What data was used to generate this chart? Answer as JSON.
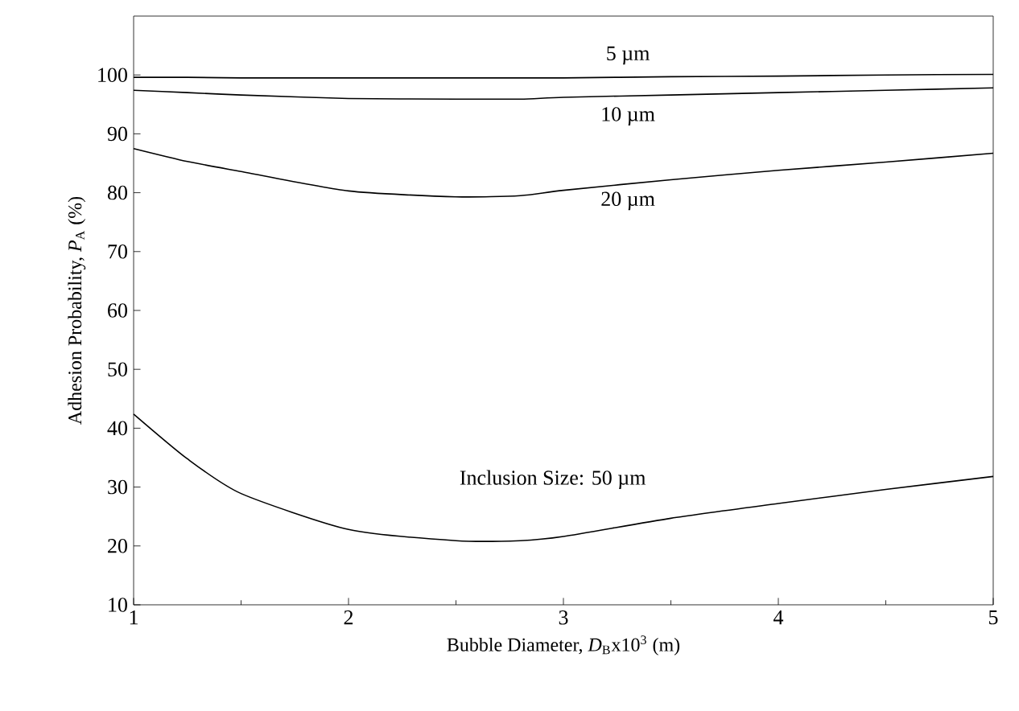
{
  "chart_data": {
    "type": "line",
    "xlabel": "Bubble Diameter,  *D*$_{B}$x10$^{3}$   (m)",
    "ylabel": "Adhesion Probability,  *P*$_{A}$    (%)",
    "xlim": [
      1,
      5
    ],
    "xticks": [
      1,
      2,
      3,
      4,
      5
    ],
    "ylim": [
      10,
      110
    ],
    "yticks": [
      10,
      20,
      30,
      40,
      50,
      60,
      70,
      80,
      90,
      100
    ],
    "grid": false,
    "marker": "none",
    "line_style": "solid",
    "x": [
      1,
      1.25,
      1.5,
      2,
      2.5,
      2.8,
      3,
      3.5,
      4,
      4.5,
      5
    ],
    "series": [
      {
        "name": "5 µm",
        "color": "#000000",
        "values": [
          99.6,
          99.6,
          99.5,
          99.5,
          99.5,
          99.5,
          99.5,
          99.7,
          99.8,
          100.0,
          100.1
        ]
      },
      {
        "name": "10 µm",
        "color": "#000000",
        "values": [
          97.4,
          97.0,
          96.6,
          96.0,
          95.9,
          95.9,
          96.2,
          96.6,
          97.0,
          97.4,
          97.8
        ]
      },
      {
        "name": "20 µm",
        "color": "#000000",
        "values": [
          87.5,
          85.3,
          83.6,
          80.3,
          79.3,
          79.5,
          80.4,
          82.2,
          83.8,
          85.2,
          86.7
        ]
      },
      {
        "name": "Inclusion Size:  50 µm",
        "color": "#000000",
        "values": [
          42.4,
          34.8,
          28.9,
          22.8,
          20.9,
          20.9,
          21.6,
          24.7,
          27.2,
          29.6,
          31.8
        ]
      }
    ]
  }
}
